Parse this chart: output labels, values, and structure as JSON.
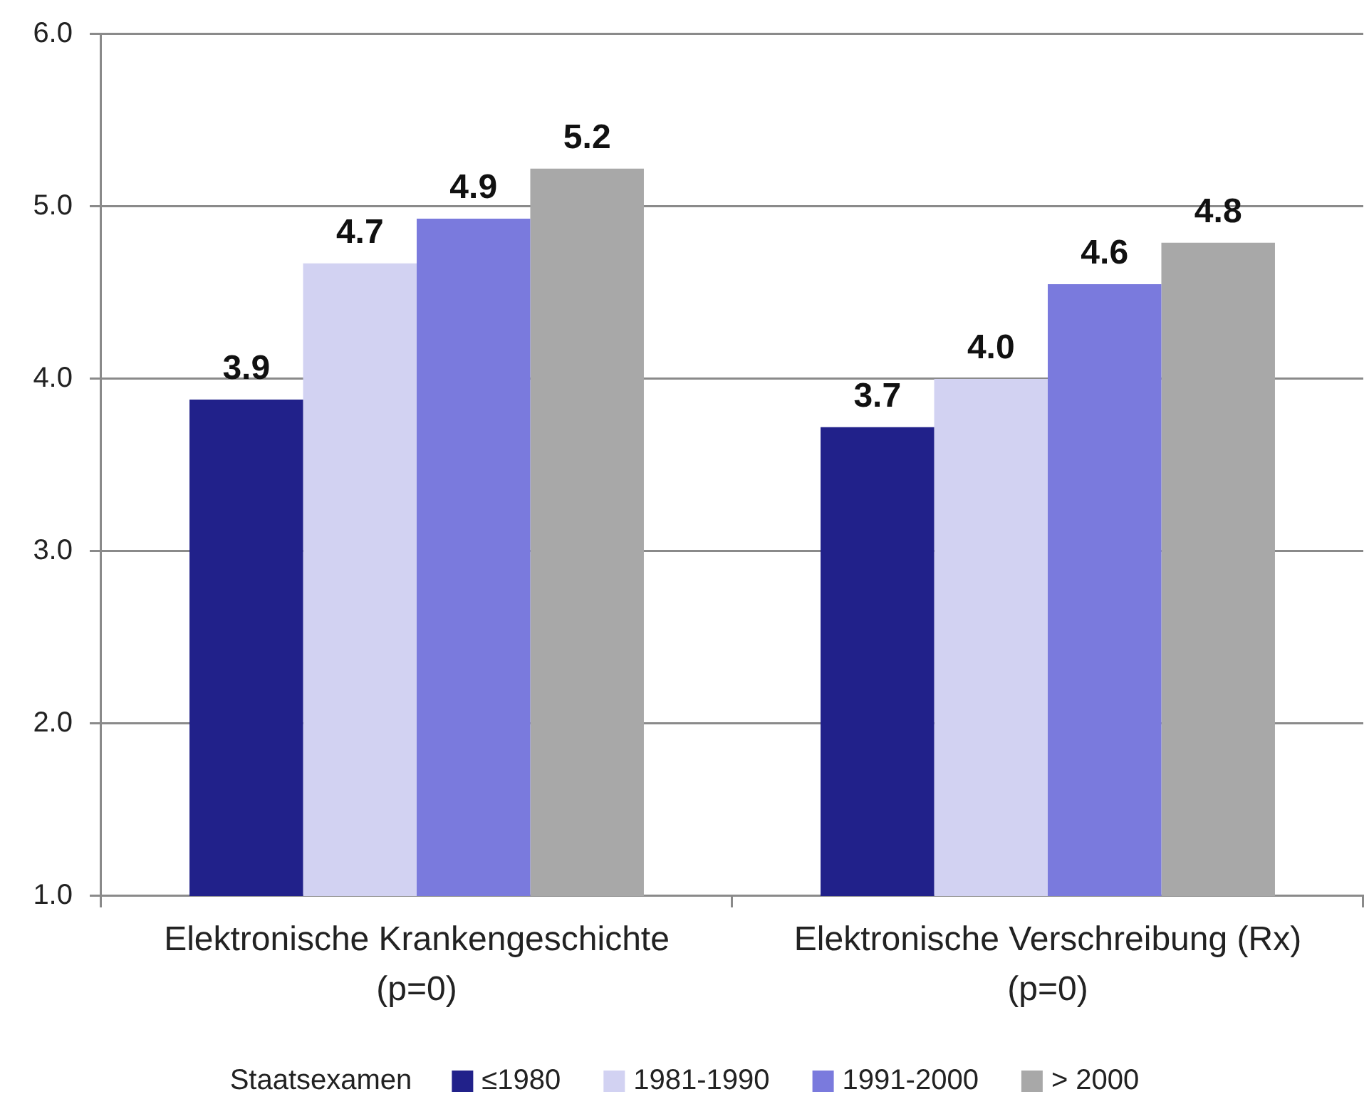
{
  "chart_data": {
    "type": "bar",
    "categories": [
      "Elektronische Krankengeschichte\n(p=0)",
      "Elektronische Verschreibung (Rx)\n(p=0)"
    ],
    "series": [
      {
        "name": "≤1980",
        "color": "#21218a",
        "values": [
          3.88,
          3.72
        ],
        "value_labels": [
          "3.9",
          "3.7"
        ]
      },
      {
        "name": "1981-1990",
        "color": "#d2d2f2",
        "values": [
          4.67,
          4.0
        ],
        "value_labels": [
          "4.7",
          "4.0"
        ]
      },
      {
        "name": "1991-2000",
        "color": "#7a7add",
        "values": [
          4.93,
          4.55
        ],
        "value_labels": [
          "4.9",
          "4.6"
        ]
      },
      {
        "name": "> 2000",
        "color": "#a8a8a8",
        "values": [
          5.22,
          4.79
        ],
        "value_labels": [
          "5.2",
          "4.8"
        ]
      }
    ],
    "ylim": [
      1,
      6
    ],
    "yticks": [
      {
        "value": 1,
        "label": "1.0"
      },
      {
        "value": 2,
        "label": "2.0"
      },
      {
        "value": 3,
        "label": "3.0"
      },
      {
        "value": 4,
        "label": "4.0"
      },
      {
        "value": 5,
        "label": "5.0"
      },
      {
        "value": 6,
        "label": "6.0"
      }
    ],
    "grid": "y",
    "legend": "bottom",
    "legend_title": "Staatsexamen"
  }
}
